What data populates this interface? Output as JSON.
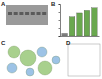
{
  "panel_labels": [
    "A",
    "B",
    "C",
    "D"
  ],
  "chart_data": {
    "type": "bar",
    "categories": [
      null,
      null,
      null,
      null,
      null
    ],
    "values": [
      8,
      60,
      72,
      80,
      88
    ],
    "colors": [
      "#7f7f7f",
      "#6aa84f",
      "#6aa84f",
      "#6aa84f",
      "#6aa84f"
    ],
    "ylim": [
      0,
      100
    ],
    "yticks": [
      0,
      25,
      50,
      75,
      100
    ],
    "tick_labels": false
  }
}
